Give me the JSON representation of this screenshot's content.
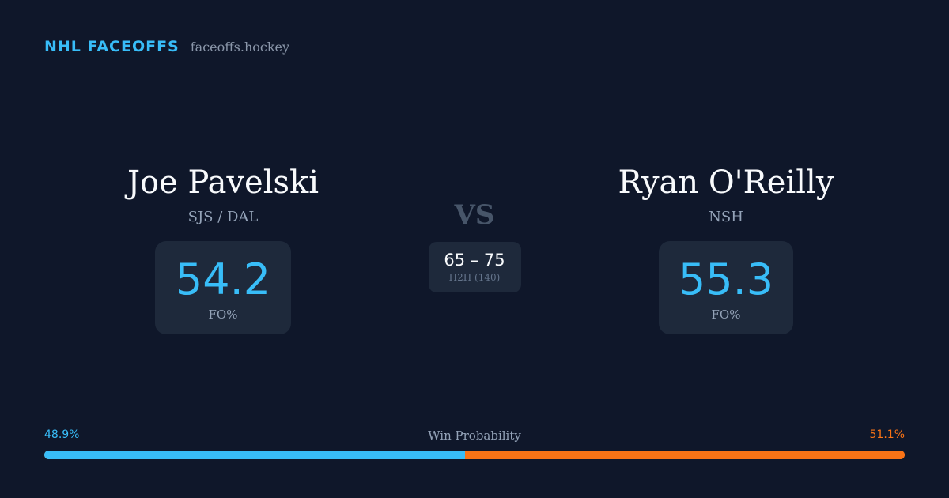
{
  "brand": {
    "name": "NHL FACEOFFS",
    "site": "faceoffs.hockey"
  },
  "player_left": {
    "name": "Joe Pavelski",
    "team": "SJS / DAL",
    "stat_value": "54.2",
    "stat_label": "FO%"
  },
  "player_right": {
    "name": "Ryan O'Reilly",
    "team": "NSH",
    "stat_value": "55.3",
    "stat_label": "FO%"
  },
  "versus": {
    "label": "VS",
    "score": "65 – 75",
    "h2h_label": "H2H (140)"
  },
  "win_probability": {
    "title": "Win Probability",
    "left_label": "48.9%",
    "right_label": "51.1%",
    "left_value": 48.9,
    "right_value": 51.1,
    "left_color": "#38bdf8",
    "right_color": "#f97316"
  },
  "colors": {
    "background": "#0f172a",
    "card": "#1e293b",
    "accent": "#38bdf8",
    "accent_secondary": "#f97316"
  }
}
